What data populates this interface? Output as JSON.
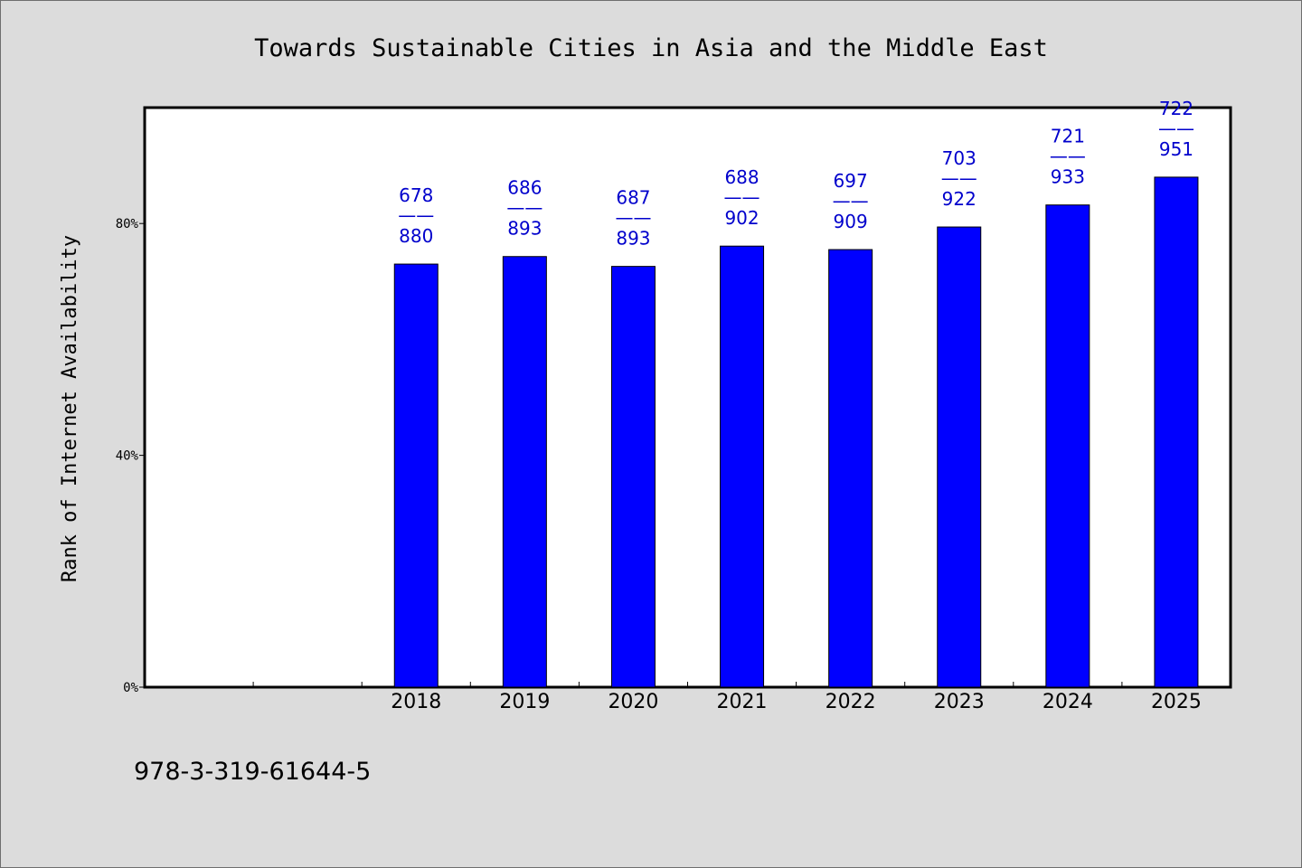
{
  "footer": {
    "code": "978-3-319-61644-5"
  },
  "colors": {
    "bar": "#0000ff",
    "bar_label": "#0000cc",
    "background": "#dcdcdc",
    "plot_background": "#ffffff"
  },
  "chart_data": {
    "type": "bar",
    "title": "Towards Sustainable Cities in Asia and the Middle East",
    "ylabel": "Rank of Internet Availability",
    "xlabel": "",
    "ylim": [
      0,
      100
    ],
    "yticks": [
      0,
      40,
      80
    ],
    "ytick_labels": [
      "0%",
      "40%",
      "80%"
    ],
    "grid": false,
    "categories": [
      "",
      "",
      "2018",
      "2019",
      "2020",
      "2021",
      "2022",
      "2023",
      "2024",
      "2025"
    ],
    "values": [
      null,
      null,
      73,
      74.3,
      72.6,
      76.1,
      75.5,
      79.4,
      83.2,
      88
    ],
    "bar_labels": [
      null,
      null,
      {
        "top": "678",
        "sep": "——",
        "bottom": "880"
      },
      {
        "top": "686",
        "sep": "——",
        "bottom": "893"
      },
      {
        "top": "687",
        "sep": "——",
        "bottom": "893"
      },
      {
        "top": "688",
        "sep": "——",
        "bottom": "902"
      },
      {
        "top": "697",
        "sep": "——",
        "bottom": "909"
      },
      {
        "top": "703",
        "sep": "——",
        "bottom": "922"
      },
      {
        "top": "721",
        "sep": "——",
        "bottom": "933"
      },
      {
        "top": "722",
        "sep": "——",
        "bottom": "951"
      }
    ]
  }
}
